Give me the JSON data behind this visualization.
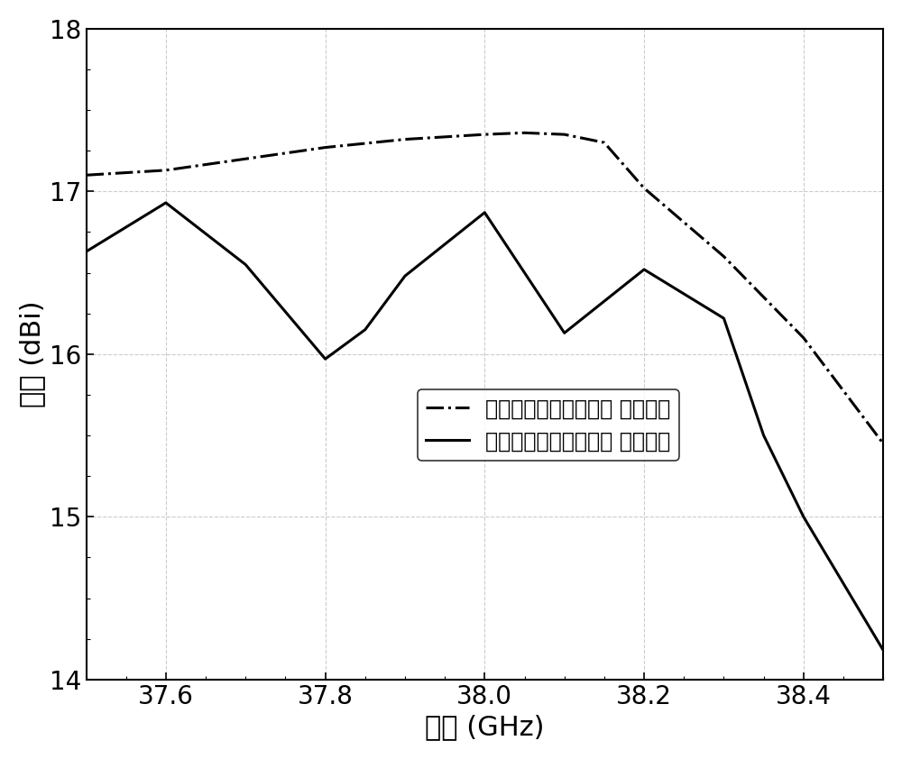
{
  "sim_x": [
    37.5,
    37.6,
    37.7,
    37.8,
    37.9,
    38.0,
    38.05,
    38.1,
    38.15,
    38.2,
    38.3,
    38.4,
    38.5
  ],
  "sim_y": [
    17.1,
    17.13,
    17.2,
    17.27,
    17.32,
    17.35,
    17.36,
    17.35,
    17.3,
    17.02,
    16.6,
    16.1,
    15.45
  ],
  "meas_x": [
    37.5,
    37.6,
    37.7,
    37.8,
    37.85,
    37.9,
    38.0,
    38.1,
    38.2,
    38.3,
    38.35,
    38.4,
    38.5
  ],
  "meas_y": [
    16.63,
    16.93,
    16.55,
    15.97,
    16.15,
    16.48,
    16.87,
    16.13,
    16.52,
    16.22,
    15.5,
    15.0,
    14.18
  ],
  "line_color": "#000000",
  "xlabel": "频率 (GHz)",
  "ylabel": "增益 (dBi)",
  "xlim": [
    37.5,
    38.5
  ],
  "ylim": [
    14,
    18
  ],
  "xticks": [
    37.6,
    37.8,
    38.0,
    38.2,
    38.4
  ],
  "yticks": [
    14,
    15,
    16,
    17,
    18
  ],
  "legend_sim": "端点馈电串馈微带天线 仿真结果",
  "legend_meas": "端点馈电串馈微带天线 实测结果",
  "grid_color": "#cccccc",
  "background_color": "#ffffff",
  "linewidth": 2.2,
  "fontsize_label": 22,
  "fontsize_tick": 20,
  "fontsize_legend": 17
}
